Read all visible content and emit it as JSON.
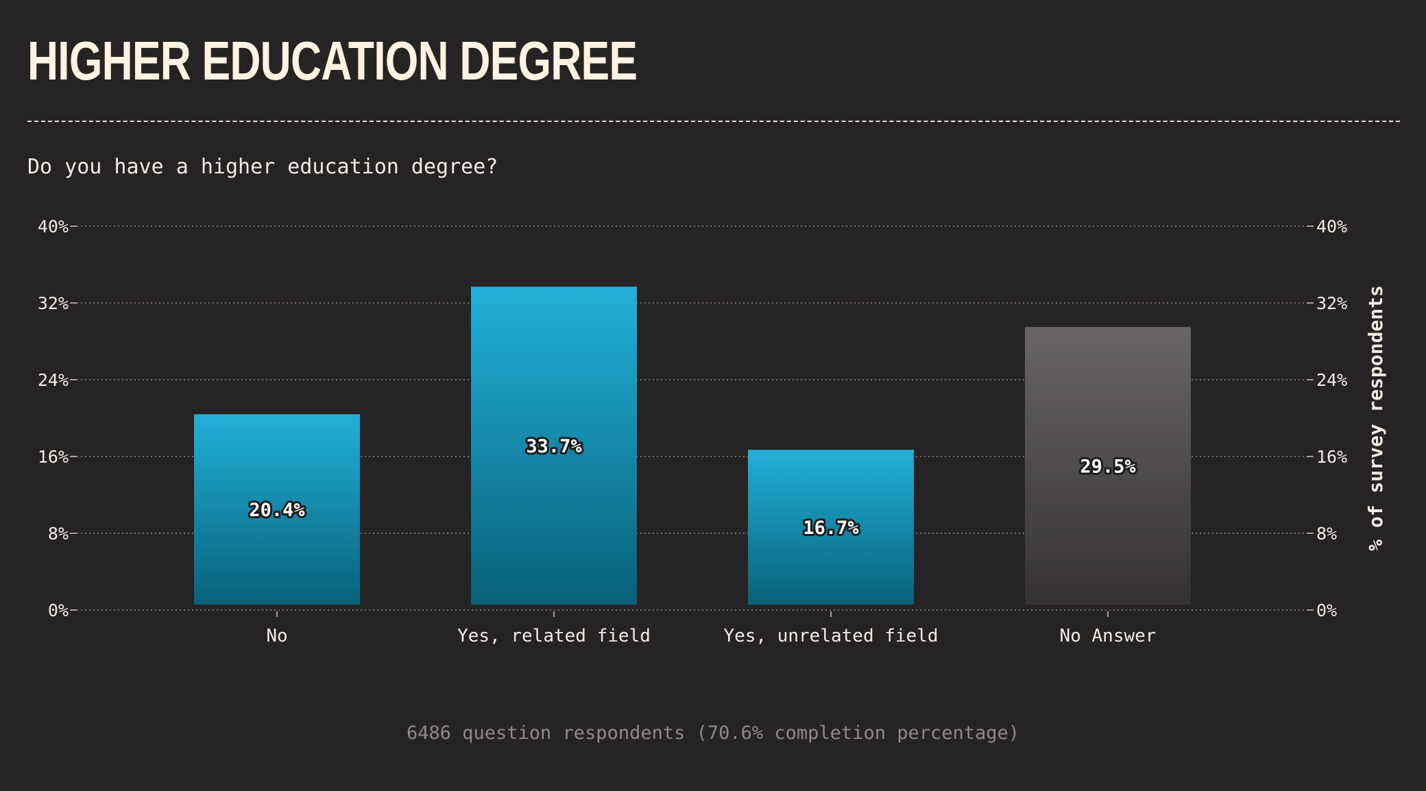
{
  "title": "HIGHER EDUCATION DEGREE",
  "question": "Do you have a higher education degree?",
  "footer": "6486 question respondents (70.6% completion percentage)",
  "colors": {
    "background": "#262324",
    "bar_top": "#22b0d8",
    "bar_bottom": "#08617a",
    "na_top": "#686566",
    "na_bottom": "#353233",
    "title": "#fdf3e3"
  },
  "chart_data": {
    "type": "bar",
    "categories": [
      "No",
      "Yes, related field",
      "Yes, unrelated field",
      "No Answer"
    ],
    "values": [
      20.4,
      33.7,
      16.7,
      29.5
    ],
    "value_labels": [
      "20.4%",
      "33.7%",
      "16.7%",
      "29.5%"
    ],
    "ylabel": "% of survey respondents",
    "ylim": [
      0,
      40
    ],
    "yticks": [
      0,
      8,
      16,
      24,
      32,
      40
    ],
    "ytick_labels": [
      "0%",
      "8%",
      "16%",
      "24%",
      "32%",
      "40%"
    ],
    "grid": true,
    "legend": "none"
  }
}
